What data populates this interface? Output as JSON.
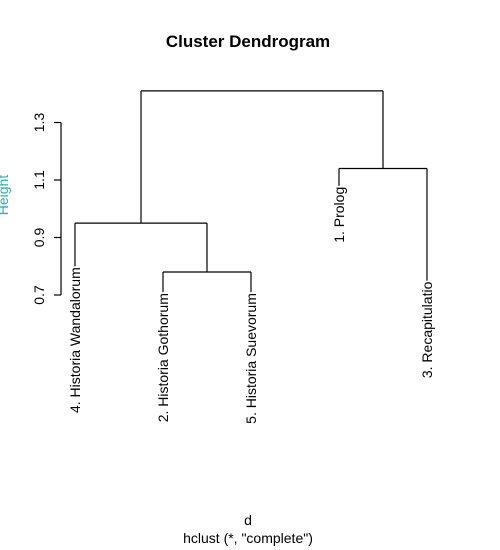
{
  "chart_data": {
    "type": "dendrogram",
    "title": "Cluster Dendrogram",
    "xlabel": "d",
    "sub": "hclust (*, \"complete\")",
    "ylabel": "Height",
    "ylabel_color": "#2ab0a5",
    "yticks": [
      0.7,
      0.9,
      1.1,
      1.3
    ],
    "ylim": [
      0.7,
      1.4
    ],
    "leaves": [
      {
        "label": "4. Historia Wandalorum",
        "height": 0.8
      },
      {
        "label": "2. Historia Gothorum",
        "height": 0.71
      },
      {
        "label": "5. Historia Suevorum",
        "height": 0.71
      },
      {
        "label": "1. Prolog",
        "height": 1.08
      },
      {
        "label": "3. Recapitulatio",
        "height": 0.75
      }
    ],
    "merges": [
      {
        "left": "leaf:1",
        "right": "leaf:2",
        "height": 0.78
      },
      {
        "left": "leaf:0",
        "right": "node:0",
        "height": 0.95
      },
      {
        "left": "leaf:3",
        "right": "leaf:4",
        "height": 1.14
      },
      {
        "left": "node:1",
        "right": "node:2",
        "height": 1.41
      }
    ]
  }
}
